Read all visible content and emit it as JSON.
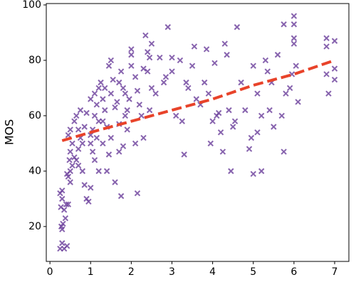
{
  "chart_data": {
    "type": "scatter",
    "ylabel": "MOS",
    "xlim": [
      -0.09,
      7.35
    ],
    "ylim": [
      7.4,
      100.5
    ],
    "xticks": [
      0,
      1,
      2,
      3,
      4,
      5,
      6,
      7
    ],
    "yticks": [
      20,
      40,
      60,
      80,
      100
    ],
    "grid": false,
    "marker": "x",
    "series": [
      {
        "color": "#6a3d9a",
        "x": [
          0.25,
          0.3,
          0.35,
          0.28,
          0.3,
          0.32,
          0.27,
          0.3,
          0.25,
          0.35,
          0.4,
          0.3,
          0.45,
          0.42,
          0.38,
          0.45,
          0.5,
          0.48,
          0.5,
          0.55,
          0.45,
          0.5,
          0.55,
          0.6,
          0.5,
          0.42,
          0.6,
          0.65,
          0.7,
          0.75,
          0.7,
          0.65,
          0.8,
          0.85,
          0.9,
          0.75,
          0.8,
          0.7,
          0.85,
          0.9,
          0.95,
          1.0,
          1.0,
          1.05,
          1.1,
          1.0,
          1.1,
          1.15,
          1.2,
          1.05,
          1.1,
          1.2,
          1.0,
          1.15,
          1.2,
          1.25,
          1.3,
          1.35,
          1.4,
          1.3,
          1.45,
          1.4,
          1.5,
          1.45,
          1.5,
          1.35,
          1.3,
          1.5,
          1.55,
          1.6,
          1.65,
          1.7,
          1.75,
          1.8,
          1.85,
          1.9,
          1.7,
          1.6,
          1.75,
          1.8,
          1.85,
          1.9,
          1.95,
          2.0,
          2.0,
          2.0,
          1.7,
          2.1,
          2.15,
          2.2,
          2.3,
          2.35,
          2.4,
          2.45,
          2.5,
          2.1,
          2.15,
          2.25,
          2.4,
          2.5,
          2.45,
          2.3,
          2.6,
          2.7,
          2.8,
          2.9,
          3.0,
          3.1,
          3.2,
          3.3,
          3.35,
          3.4,
          3.5,
          2.85,
          3.0,
          3.25,
          3.55,
          3.6,
          3.7,
          3.8,
          3.9,
          4.0,
          4.1,
          4.2,
          4.3,
          4.35,
          4.4,
          4.5,
          4.25,
          4.45,
          3.95,
          4.05,
          4.15,
          3.85,
          4.55,
          4.6,
          4.7,
          4.8,
          4.9,
          5.0,
          5.1,
          5.2,
          5.3,
          5.0,
          5.2,
          5.1,
          4.95,
          5.4,
          5.5,
          5.45,
          5.35,
          5.6,
          5.7,
          5.75,
          5.8,
          5.9,
          6.0,
          6.0,
          6.0,
          6.0,
          5.95,
          6.1,
          5.75,
          6.05,
          6.8,
          6.8,
          6.8,
          6.85,
          7.0,
          7.0,
          7.0
        ],
        "values": [
          12,
          14,
          12,
          20,
          19,
          21,
          27,
          30,
          32,
          26,
          28,
          33,
          28,
          13,
          23,
          38,
          40,
          44,
          47,
          50,
          53,
          55,
          42,
          45,
          36,
          39,
          58,
          60,
          55,
          52,
          48,
          44,
          50,
          56,
          61,
          62,
          40,
          42,
          35,
          30,
          29,
          34,
          53,
          55,
          60,
          66,
          68,
          64,
          58,
          47,
          44,
          70,
          50,
          52,
          40,
          72,
          66,
          62,
          56,
          50,
          46,
          40,
          80,
          78,
          68,
          70,
          58,
          52,
          73,
          63,
          65,
          72,
          76,
          70,
          60,
          55,
          47,
          36,
          31,
          49,
          68,
          62,
          66,
          84,
          82,
          78,
          57,
          74,
          69,
          64,
          77,
          89,
          83,
          81,
          70,
          50,
          32,
          60,
          76,
          86,
          62,
          52,
          68,
          81,
          72,
          92,
          76,
          60,
          80,
          46,
          72,
          70,
          78,
          74,
          81,
          58,
          85,
          66,
          64,
          72,
          68,
          58,
          60,
          54,
          86,
          82,
          62,
          56,
          47,
          40,
          50,
          79,
          61,
          84,
          58,
          92,
          72,
          62,
          48,
          78,
          68,
          60,
          80,
          39,
          40,
          54,
          52,
          62,
          56,
          72,
          76,
          82,
          60,
          47,
          68,
          70,
          96,
          93,
          88,
          86,
          75,
          65,
          93,
          78,
          88,
          85,
          75,
          68,
          87,
          77,
          73
        ]
      },
      {
        "type": "line",
        "color": "#e8432a",
        "dashed": true,
        "x": [
          0.3,
          1,
          2,
          3,
          4,
          5,
          6,
          7
        ],
        "values": [
          51,
          54,
          58,
          62,
          66,
          71,
          75,
          80
        ]
      }
    ]
  }
}
